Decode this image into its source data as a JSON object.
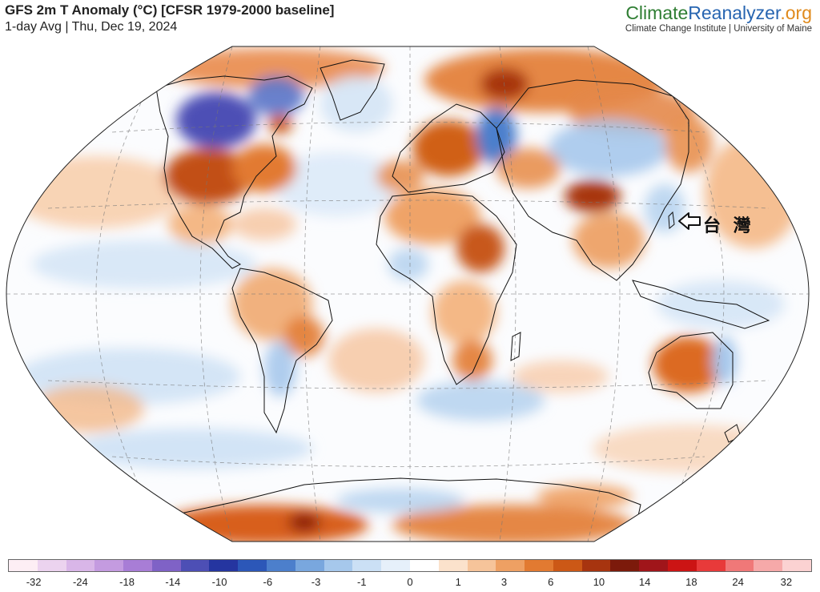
{
  "header": {
    "title": "GFS 2m T Anomaly (°C) [CFSR 1979-2000 baseline]",
    "subtitle": "1-day Avg | Thu, Dec 19, 2024"
  },
  "brand": {
    "part1": "Climate",
    "part2": "Reanalyzer",
    "part3": ".org",
    "tagline": "Climate Change Institute | University of Maine"
  },
  "annotation": {
    "label": "台 灣",
    "arrow": "left-arrow-icon"
  },
  "colorbar": {
    "colors": [
      "#fdeef4",
      "#ecd3ef",
      "#d9b6e8",
      "#c49be0",
      "#a87dd6",
      "#7f62c6",
      "#4d4fb5",
      "#2535a0",
      "#2c57b8",
      "#4c7fcc",
      "#79a7de",
      "#a6c8ec",
      "#cbe0f5",
      "#e6f0fa",
      "#ffffff",
      "#fbe2cc",
      "#f6c49a",
      "#eea063",
      "#e27a31",
      "#cc5816",
      "#a7340f",
      "#7c1a0b",
      "#a0151a",
      "#cc1414",
      "#e83a3a",
      "#f07878",
      "#f6a9a9",
      "#fbd2d2"
    ],
    "ticks": [
      "-32",
      "-24",
      "-18",
      "-14",
      "-10",
      "-6",
      "-3",
      "-1",
      "0",
      "1",
      "3",
      "6",
      "10",
      "14",
      "18",
      "24",
      "32"
    ],
    "tick_positions": [
      0.032,
      0.09,
      0.148,
      0.205,
      0.263,
      0.323,
      0.383,
      0.44,
      0.5,
      0.56,
      0.617,
      0.675,
      0.735,
      0.792,
      0.85,
      0.908,
      0.968
    ]
  }
}
